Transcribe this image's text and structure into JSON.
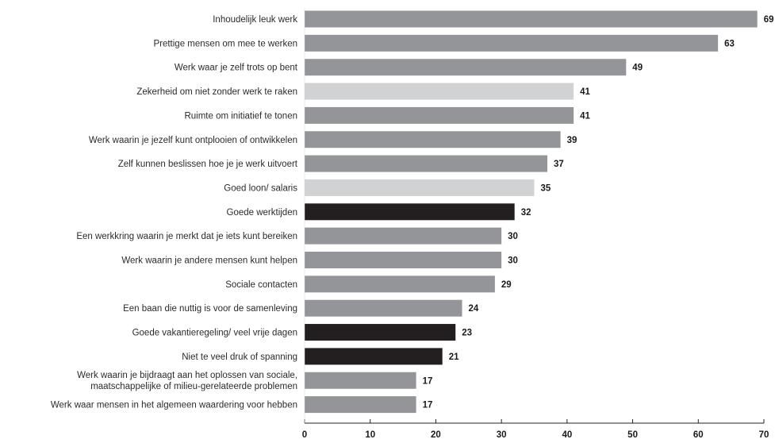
{
  "chart_data": {
    "type": "bar",
    "orientation": "horizontal",
    "title": "",
    "xlabel": "",
    "ylabel": "",
    "xlim": [
      0,
      70
    ],
    "x_ticks": [
      "0",
      "10",
      "20",
      "30",
      "40",
      "50",
      "60",
      "70"
    ],
    "grid": false,
    "legend": "none",
    "colors": {
      "medium": "#939598",
      "light": "#d1d2d4",
      "dark": "#231f20"
    },
    "bars": [
      {
        "label": "Inhoudelijk leuk werk",
        "value": 69,
        "display": "69",
        "shade": "medium"
      },
      {
        "label": "Prettige mensen om mee te werken",
        "value": 63,
        "display": "63",
        "shade": "medium"
      },
      {
        "label": "Werk waar je zelf trots op bent",
        "value": 49,
        "display": "49",
        "shade": "medium"
      },
      {
        "label": "Zekerheid om niet zonder werk te raken",
        "value": 41,
        "display": "41",
        "shade": "light"
      },
      {
        "label": "Ruimte om initiatief te tonen",
        "value": 41,
        "display": "41",
        "shade": "medium"
      },
      {
        "label": "Werk waarin je jezelf kunt ontplooien of ontwikkelen",
        "value": 39,
        "display": "39",
        "shade": "medium"
      },
      {
        "label": "Zelf kunnen beslissen hoe je je werk uitvoert",
        "value": 37,
        "display": "37",
        "shade": "medium"
      },
      {
        "label": "Goed loon/ salaris",
        "value": 35,
        "display": "35",
        "shade": "light"
      },
      {
        "label": "Goede werktijden",
        "value": 32,
        "display": "32",
        "shade": "dark"
      },
      {
        "label": "Een werkkring waarin je merkt dat je iets kunt bereiken",
        "value": 30,
        "display": "30",
        "shade": "medium"
      },
      {
        "label": "Werk waarin je andere mensen kunt helpen",
        "value": 30,
        "display": "30",
        "shade": "medium"
      },
      {
        "label": "Sociale contacten",
        "value": 29,
        "display": "29",
        "shade": "medium"
      },
      {
        "label": "Een baan die nuttig is voor de samenleving",
        "value": 24,
        "display": "24",
        "shade": "medium"
      },
      {
        "label": "Goede vakantieregeling/ veel vrije dagen",
        "value": 23,
        "display": "23",
        "shade": "dark"
      },
      {
        "label": "Niet te veel druk of spanning",
        "value": 21,
        "display": "21",
        "shade": "dark"
      },
      {
        "label": [
          "Werk waarin je bijdraagt aan het oplossen van sociale,",
          "maatschappelijke of milieu-gerelateerde problemen"
        ],
        "value": 17,
        "display": "17",
        "shade": "medium"
      },
      {
        "label": "Werk waar mensen in het algemeen waardering voor hebben",
        "value": 17,
        "display": "17",
        "shade": "medium"
      }
    ]
  }
}
